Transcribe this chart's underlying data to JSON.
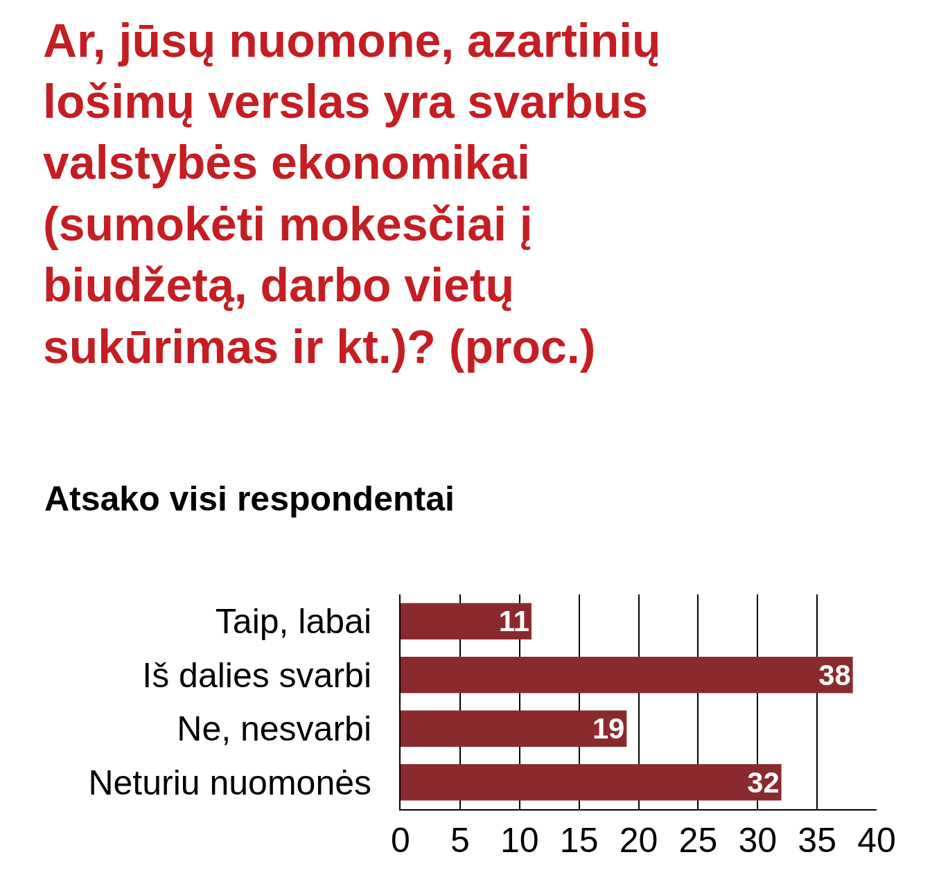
{
  "chart_data": {
    "type": "bar",
    "orientation": "horizontal",
    "title": "Ar, jūsų nuomone, azartinių\nlošimų verslas yra svarbus\nvalstybės ekonomikai\n(sumokėti mokesčiai į\nbiudžetą, darbo vietų\nsukūrimas ir kt.)? (proc.)",
    "subtitle": "Atsako visi respondentai",
    "categories": [
      "Taip, labai",
      "Iš dalies svarbi",
      "Ne, nesvarbi",
      "Neturiu nuomonės"
    ],
    "values": [
      11,
      38,
      19,
      32
    ],
    "color": "#8b2a2e",
    "xlim": [
      0,
      40
    ],
    "xticks": [
      0,
      5,
      10,
      15,
      20,
      25,
      30,
      35,
      40
    ],
    "grid": "x",
    "data_labels": true
  }
}
